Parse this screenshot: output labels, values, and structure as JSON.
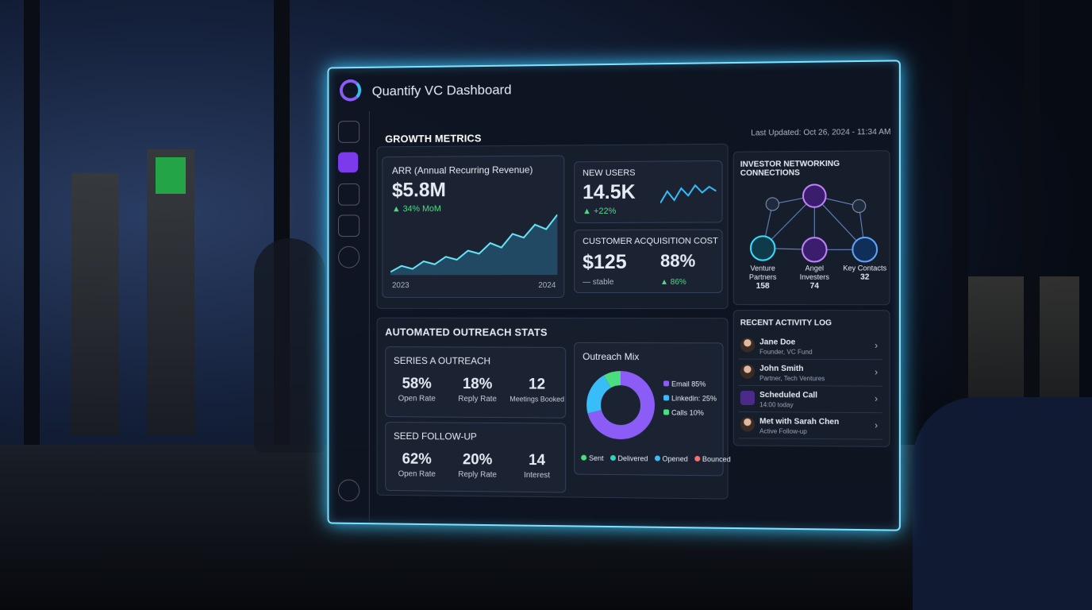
{
  "header": {
    "title": "Quantify VC Dashboard",
    "last_updated": "Last Updated: Oct 26, 2024 - 11:34 AM"
  },
  "growth": {
    "title": "GROWTH METRICS",
    "arr": {
      "label": "ARR (Annual Recurring Revenue)",
      "value": "$5.8M",
      "change": "▲ 34% MoM",
      "trend": [
        10,
        18,
        14,
        24,
        20,
        30,
        26,
        38,
        34,
        48,
        42,
        60,
        55,
        72,
        66,
        85
      ],
      "start": "2023",
      "end": "2024"
    },
    "new_users": {
      "label": "NEW USERS",
      "value": "14.5K",
      "change": "▲ +22%",
      "trend": [
        50,
        58,
        52,
        60,
        55,
        62,
        57,
        61,
        58
      ]
    },
    "cac": {
      "label": "CUSTOMER ACQUISITION COST",
      "value": "$125",
      "note": "— stable",
      "rate": "88%",
      "rate_change": "▲ 86%"
    }
  },
  "network": {
    "title": "INVESTOR NETWORKING CONNECTIONS",
    "nodes": [
      {
        "label": "Venture Partners",
        "count": "158"
      },
      {
        "label": "Angel Investers",
        "count": "74"
      },
      {
        "label": "Key Contacts",
        "count": "32"
      }
    ]
  },
  "outreach": {
    "title": "AUTOMATED OUTREACH STATS",
    "campaigns": [
      {
        "name": "SERIES A OUTREACH",
        "stats": [
          {
            "value": "58%",
            "label": "Open Rate"
          },
          {
            "value": "18%",
            "label": "Reply Rate"
          },
          {
            "value": "12",
            "label": "Meetings Booked"
          }
        ]
      },
      {
        "name": "SEED FOLLOW-UP",
        "stats": [
          {
            "value": "62%",
            "label": "Open Rate"
          },
          {
            "value": "20%",
            "label": "Reply Rate"
          },
          {
            "value": "14",
            "label": "Interest"
          }
        ]
      }
    ],
    "mix": {
      "title": "Outreach Mix",
      "segments": [
        {
          "name": "Email",
          "value": 85,
          "label": "85%",
          "color": "#8b5cf6"
        },
        {
          "name": "Linkedin:",
          "value": 25,
          "label": "25%",
          "color": "#38bdf8"
        },
        {
          "name": "Calls",
          "value": 10,
          "label": "10%",
          "color": "#4ade80"
        }
      ],
      "legend": [
        {
          "name": "Sent",
          "color": "#4ade80"
        },
        {
          "name": "Delivered",
          "color": "#2dd4bf"
        },
        {
          "name": "Opened",
          "color": "#38bdf8"
        },
        {
          "name": "Bounced",
          "color": "#f87171"
        }
      ]
    }
  },
  "activity": {
    "title": "RECENT ACTIVITY LOG",
    "items": [
      {
        "title": "Jane Doe",
        "subtitle": "Founder, VC Fund"
      },
      {
        "title": "John Smith",
        "subtitle": "Partner, Tech Ventures"
      },
      {
        "title": "Scheduled Call",
        "subtitle": "14:00 today"
      },
      {
        "title": "Met with Sarah Chen",
        "subtitle": "Active Follow-up"
      }
    ]
  }
}
